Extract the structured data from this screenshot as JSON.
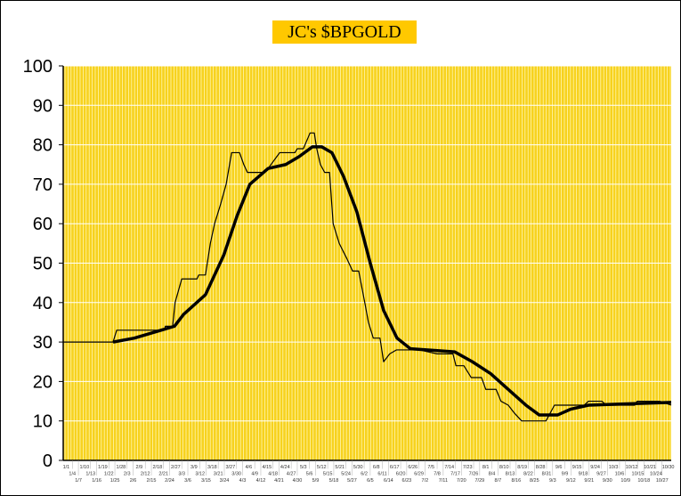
{
  "chart_data": {
    "type": "line",
    "title": "JC's $BPGOLD",
    "xlabel": "",
    "ylabel": "",
    "ylim": [
      0,
      100
    ],
    "yticks": [
      0,
      10,
      20,
      30,
      40,
      50,
      60,
      70,
      80,
      90,
      100
    ],
    "grid": true,
    "legend": "none",
    "x_tick_labels": [
      "1/1",
      "1/4",
      "1/7",
      "1/10",
      "1/13",
      "1/16",
      "1/19",
      "1/22",
      "1/25",
      "1/28",
      "2/3",
      "2/6",
      "2/9",
      "2/12",
      "2/15",
      "2/18",
      "2/21",
      "2/24",
      "2/27",
      "3/3",
      "3/6",
      "3/9",
      "3/12",
      "3/15",
      "3/18",
      "3/21",
      "3/24",
      "3/27",
      "3/30",
      "4/3",
      "4/6",
      "4/9",
      "4/12",
      "4/15",
      "4/18",
      "4/21",
      "4/24",
      "4/27",
      "4/30",
      "5/3",
      "5/6",
      "5/9",
      "5/12",
      "5/15",
      "5/18",
      "5/21",
      "5/24",
      "5/27",
      "5/30",
      "6/2",
      "6/5",
      "6/8",
      "6/11",
      "6/14",
      "6/17",
      "6/20",
      "6/23",
      "6/26",
      "6/29",
      "7/2",
      "7/5",
      "7/8",
      "7/11",
      "7/14",
      "7/17",
      "7/20",
      "7/23",
      "7/26",
      "7/29",
      "8/1",
      "8/4",
      "8/7",
      "8/10",
      "8/13",
      "8/16",
      "8/19",
      "8/22",
      "8/25",
      "8/28",
      "8/31",
      "9/3",
      "9/6",
      "9/9",
      "9/12",
      "9/15",
      "9/18",
      "9/21",
      "9/24",
      "9/27",
      "9/30",
      "10/3",
      "10/6",
      "10/9",
      "10/12",
      "10/15",
      "10/18",
      "10/21",
      "10/24",
      "10/27",
      "10/30"
    ],
    "colors": {
      "plot_background": "#F7D21E",
      "title_background": "#FFC800",
      "line": "#000000",
      "gridline": "#FFFFFF"
    },
    "series": [
      {
        "style": "thin",
        "x": [
          0,
          8.2,
          8.8,
          16.7,
          16.8,
          18,
          18.4,
          19.5,
          22,
          22.3,
          23.4,
          24.2,
          24.9,
          25.9,
          26.8,
          27.7,
          29,
          29.7,
          30.3,
          32.9,
          33.7,
          35.6,
          38.1,
          38.5,
          39.5,
          40.6,
          41.3,
          41.7,
          42.3,
          43,
          43.8,
          44.4,
          45.4,
          46.7,
          47.6,
          48.6,
          49.6,
          50.2,
          51,
          52.1,
          52.7,
          53.7,
          54.8,
          58.6,
          61.5,
          64.1,
          64.6,
          65.9,
          67.1,
          68.8,
          69.5,
          71.2,
          72,
          73.2,
          74.2,
          75.4,
          79.4,
          80.8,
          85.7,
          86.4,
          88.6,
          89.3,
          94,
          94.4,
          98.1,
          100
        ],
        "y": [
          30,
          30,
          33,
          33,
          34,
          34,
          40,
          46,
          46,
          47,
          47,
          55,
          60,
          65,
          70,
          78,
          78,
          75,
          73,
          73,
          74,
          78,
          78,
          79,
          79,
          83,
          83,
          79,
          75,
          73,
          73,
          60,
          55,
          51,
          48,
          48,
          40,
          35,
          31,
          31,
          25,
          27,
          28,
          28,
          27,
          27,
          24,
          24,
          21,
          21,
          18,
          18,
          15,
          14,
          12,
          10,
          10,
          14,
          14,
          15,
          15,
          14,
          14,
          15,
          15,
          14
        ]
      },
      {
        "style": "thick",
        "x": [
          8.2,
          11.7,
          16.1,
          18.3,
          19.8,
          23.4,
          26.4,
          28.6,
          30.7,
          33.7,
          36.6,
          38.8,
          41,
          42.5,
          44.2,
          46.1,
          48.3,
          50.5,
          52.7,
          54.9,
          57.1,
          60,
          64.4,
          67.3,
          70.3,
          73.2,
          76.1,
          78.3,
          81.3,
          83.5,
          86.4,
          92.2,
          100
        ],
        "y": [
          30,
          31,
          33,
          34,
          37,
          42,
          52,
          62,
          70,
          74,
          75,
          77,
          79.5,
          79.5,
          78,
          72,
          63,
          50,
          38,
          31,
          28.3,
          28,
          27.5,
          25,
          22,
          18,
          14,
          11.5,
          11.5,
          13,
          14,
          14.3,
          14.7
        ]
      }
    ]
  }
}
